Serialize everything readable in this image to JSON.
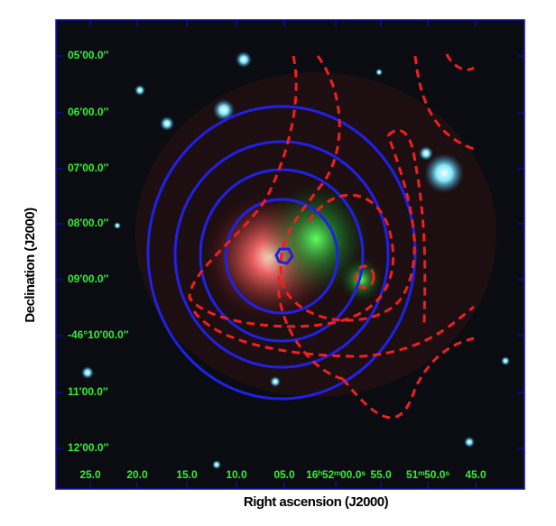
{
  "x_axis": {
    "label": "Right ascension (J2000)",
    "ticks": [
      "25.0",
      "20.0",
      "15.0",
      "10.0",
      "05.0",
      "16ʰ52ᵐ00.0ˢ",
      "55.0",
      "51ᵐ50.0ˢ",
      "45.0"
    ]
  },
  "y_axis": {
    "label": "Declination (J2000)",
    "ticks": [
      "05′00.0″",
      "06′00.0″",
      "07′00.0″",
      "08′00.0″",
      "09′00.0″",
      "-46°10′00.0″",
      "11′00.0″",
      "12′00.0″"
    ]
  }
}
